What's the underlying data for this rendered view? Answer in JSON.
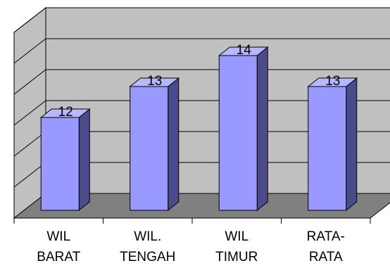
{
  "chart_data": {
    "type": "bar",
    "three_d": true,
    "categories": [
      [
        "WIL",
        "BARAT"
      ],
      [
        "WIL.",
        "TENGAH"
      ],
      [
        "WIL",
        "TIMUR"
      ],
      [
        "RATA-",
        "RATA"
      ]
    ],
    "values": [
      12,
      13,
      14,
      13
    ],
    "data_labels": [
      "12",
      "13",
      "14",
      "13"
    ],
    "title": "",
    "xlabel": "",
    "ylabel": "",
    "ylim": [
      9,
      15
    ],
    "grid": true,
    "legend": "none"
  },
  "colors": {
    "bar_front": "#9999ff",
    "bar_side": "#4b4b8c",
    "bar_top": "#b8b8ff",
    "back_wall": "#c0c0c0",
    "side_wall": "#c0c0c0",
    "floor": "#808080",
    "gridline": "#000000"
  }
}
